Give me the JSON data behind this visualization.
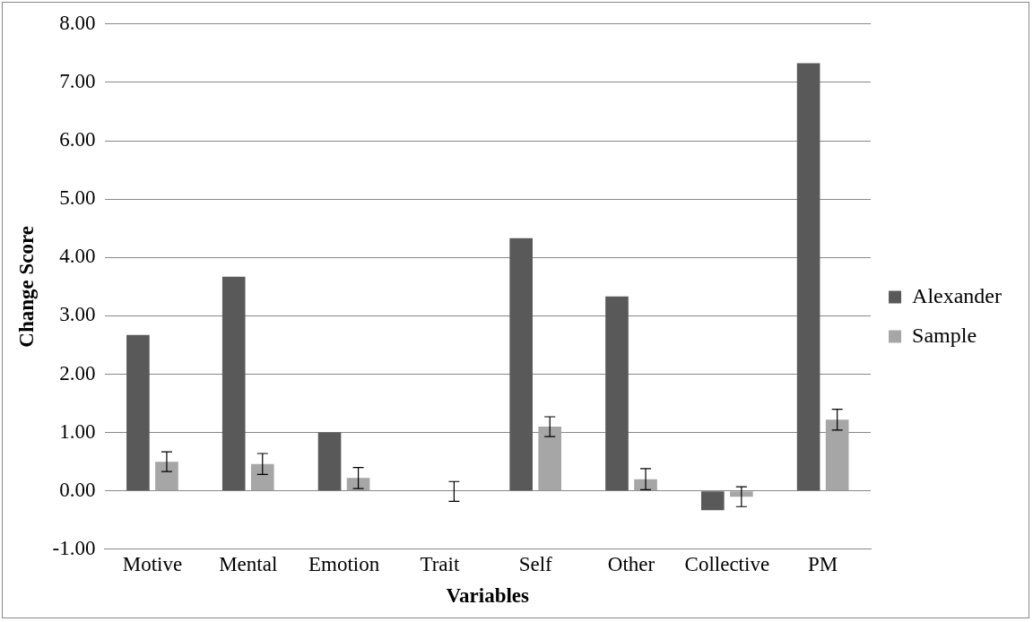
{
  "chart_data": {
    "type": "bar",
    "xlabel": "Variables",
    "ylabel": "Change Score",
    "categories": [
      "Motive",
      "Mental",
      "Emotion",
      "Trait",
      "Self",
      "Other",
      "Collective",
      "PM"
    ],
    "series": [
      {
        "name": "Alexander",
        "color": "#595959",
        "values": [
          2.67,
          3.67,
          1.0,
          null,
          4.33,
          3.33,
          -0.33,
          7.33
        ]
      },
      {
        "name": "Sample",
        "color": "#a6a6a6",
        "values": [
          0.5,
          0.46,
          0.22,
          -0.01,
          1.1,
          0.2,
          -0.1,
          1.22
        ],
        "errors": [
          0.17,
          0.18,
          0.18,
          0.17,
          0.17,
          0.18,
          0.17,
          0.18
        ]
      }
    ],
    "ylim": [
      -1,
      8
    ],
    "yticks": [
      {
        "value": -1,
        "label": "-1.00"
      },
      {
        "value": 0,
        "label": "0.00"
      },
      {
        "value": 1,
        "label": "1.00"
      },
      {
        "value": 2,
        "label": "2.00"
      },
      {
        "value": 3,
        "label": "3.00"
      },
      {
        "value": 4,
        "label": "4.00"
      },
      {
        "value": 5,
        "label": "5.00"
      },
      {
        "value": 6,
        "label": "6.00"
      },
      {
        "value": 7,
        "label": "7.00"
      },
      {
        "value": 8,
        "label": "8.00"
      }
    ],
    "grid": "y",
    "legend": "right"
  }
}
